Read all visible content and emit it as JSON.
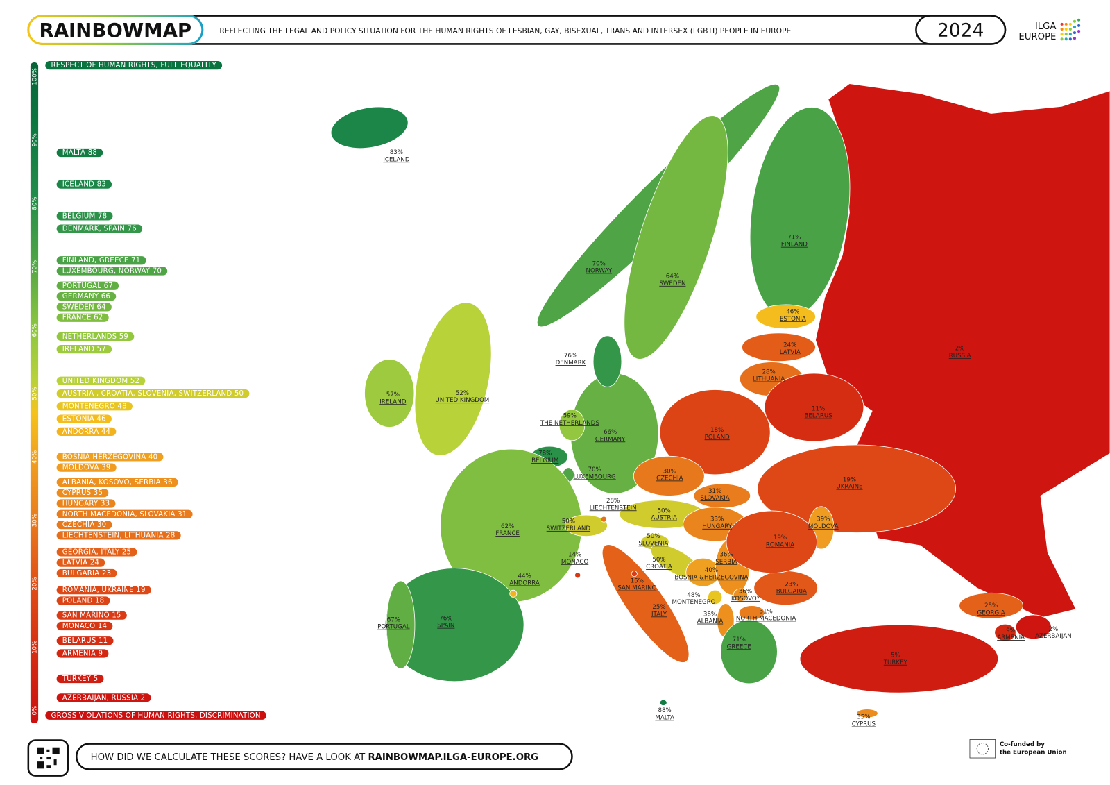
{
  "header": {
    "logo": "RAINBOWMAP",
    "subtitle": "REFLECTING THE LEGAL AND POLICY SITUATION FOR THE HUMAN RIGHTS OF LESBIAN, GAY, BISEXUAL, TRANS AND INTERSEX (LGBTI) PEOPLE IN EUROPE",
    "year": "2024",
    "org": [
      "ILGA",
      "EUROPE"
    ]
  },
  "scale": {
    "top_label": "RESPECT OF HUMAN RIGHTS, FULL EQUALITY",
    "bottom_label": "GROSS VIOLATIONS OF HUMAN RIGHTS, DISCRIMINATION",
    "ticks": [
      {
        "value": 0,
        "label": "0%"
      },
      {
        "value": 10,
        "label": "10%"
      },
      {
        "value": 20,
        "label": "20%"
      },
      {
        "value": 30,
        "label": "30%"
      },
      {
        "value": 40,
        "label": "40%"
      },
      {
        "value": 50,
        "label": "50%"
      },
      {
        "value": 60,
        "label": "60%"
      },
      {
        "value": 70,
        "label": "70%"
      },
      {
        "value": 80,
        "label": "80%"
      },
      {
        "value": 90,
        "label": "90%"
      },
      {
        "value": 100,
        "label": "100%"
      }
    ]
  },
  "ranking": [
    {
      "label": "MALTA",
      "score": 88
    },
    {
      "label": "ICELAND",
      "score": 83
    },
    {
      "label": "BELGIUM",
      "score": 78
    },
    {
      "label": "DENMARK, SPAIN",
      "score": 76
    },
    {
      "label": "FINLAND, GREECE",
      "score": 71
    },
    {
      "label": "LUXEMBOURG, NORWAY",
      "score": 70
    },
    {
      "label": "PORTUGAL",
      "score": 67
    },
    {
      "label": "GERMANY",
      "score": 66
    },
    {
      "label": "SWEDEN",
      "score": 64
    },
    {
      "label": "FRANCE",
      "score": 62
    },
    {
      "label": "NETHERLANDS",
      "score": 59
    },
    {
      "label": "IRELAND",
      "score": 57
    },
    {
      "label": "UNITED KINGDOM",
      "score": 52
    },
    {
      "label": "AUSTRIA , CROATIA, SLOVENIA, SWITZERLAND",
      "score": 50
    },
    {
      "label": "MONTENEGRO",
      "score": 48
    },
    {
      "label": "ESTONIA",
      "score": 46
    },
    {
      "label": "ANDORRA",
      "score": 44
    },
    {
      "label": "BOSNIA HERZEGOVINA",
      "score": 40
    },
    {
      "label": "MOLDOVA",
      "score": 39
    },
    {
      "label": "ALBANIA, KOSOVO, SERBIA",
      "score": 36
    },
    {
      "label": "CYPRUS",
      "score": 35
    },
    {
      "label": "HUNGARY",
      "score": 33
    },
    {
      "label": "NORTH MACEDONIA, SLOVAKIA",
      "score": 31
    },
    {
      "label": "CZECHIA",
      "score": 30
    },
    {
      "label": "LIECHTENSTEIN, LITHUANIA",
      "score": 28
    },
    {
      "label": "GEORGIA, ITALY",
      "score": 25
    },
    {
      "label": "LATVIA",
      "score": 24
    },
    {
      "label": "BULGARIA",
      "score": 23
    },
    {
      "label": "ROMANIA, UKRAINE",
      "score": 19
    },
    {
      "label": "POLAND",
      "score": 18
    },
    {
      "label": "SAN MARINO",
      "score": 15
    },
    {
      "label": "MONACO",
      "score": 14
    },
    {
      "label": "BELARUS",
      "score": 11
    },
    {
      "label": "ARMENIA",
      "score": 9
    },
    {
      "label": "TURKEY",
      "score": 5
    },
    {
      "label": "AZERBAIJAN, RUSSIA",
      "score": 2
    }
  ],
  "countries": [
    {
      "name": "RUSSIA",
      "value": 2,
      "value_label": "2%"
    },
    {
      "name": "ICELAND",
      "value": 83,
      "value_label": "83%"
    },
    {
      "name": "NORWAY",
      "value": 70,
      "value_label": "70%"
    },
    {
      "name": "SWEDEN",
      "value": 64,
      "value_label": "64%"
    },
    {
      "name": "FINLAND",
      "value": 71,
      "value_label": "71%"
    },
    {
      "name": "ESTONIA",
      "value": 46,
      "value_label": "46%"
    },
    {
      "name": "LATVIA",
      "value": 24,
      "value_label": "24%"
    },
    {
      "name": "LITHUANIA",
      "value": 28,
      "value_label": "28%"
    },
    {
      "name": "BELARUS",
      "value": 11,
      "value_label": "11%"
    },
    {
      "name": "UKRAINE",
      "value": 19,
      "value_label": "19%"
    },
    {
      "name": "MOLDOVA",
      "value": 39,
      "value_label": "39%"
    },
    {
      "name": "POLAND",
      "value": 18,
      "value_label": "18%"
    },
    {
      "name": "GERMANY",
      "value": 66,
      "value_label": "66%"
    },
    {
      "name": "DENMARK",
      "value": 76,
      "value_label": "76%"
    },
    {
      "name": "THE NETHERLANDS",
      "value": 59,
      "value_label": "59%"
    },
    {
      "name": "BELGIUM",
      "value": 78,
      "value_label": "78%"
    },
    {
      "name": "LUXEMBOURG",
      "value": 70,
      "value_label": "70%"
    },
    {
      "name": "FRANCE",
      "value": 62,
      "value_label": "62%"
    },
    {
      "name": "UNITED KINGDOM",
      "value": 52,
      "value_label": "52%"
    },
    {
      "name": "IRELAND",
      "value": 57,
      "value_label": "57%"
    },
    {
      "name": "SPAIN",
      "value": 76,
      "value_label": "76%"
    },
    {
      "name": "PORTUGAL",
      "value": 67,
      "value_label": "67%"
    },
    {
      "name": "ANDORRA",
      "value": 44,
      "value_label": "44%"
    },
    {
      "name": "MONACO",
      "value": 14,
      "value_label": "14%"
    },
    {
      "name": "SWITZERLAND",
      "value": 50,
      "value_label": "50%"
    },
    {
      "name": "LIECHTENSTEIN",
      "value": 28,
      "value_label": "28%"
    },
    {
      "name": "AUSTRIA",
      "value": 50,
      "value_label": "50%"
    },
    {
      "name": "CZECHIA",
      "value": 30,
      "value_label": "30%"
    },
    {
      "name": "SLOVAKIA",
      "value": 31,
      "value_label": "31%"
    },
    {
      "name": "HUNGARY",
      "value": 33,
      "value_label": "33%"
    },
    {
      "name": "SLOVENIA",
      "value": 50,
      "value_label": "50%"
    },
    {
      "name": "CROATIA",
      "value": 50,
      "value_label": "50%"
    },
    {
      "name": "BOSNIA &HERZEGOVINA",
      "value": 40,
      "value_label": "40%"
    },
    {
      "name": "SERBIA",
      "value": 36,
      "value_label": "36%"
    },
    {
      "name": "MONTENEGRO",
      "value": 48,
      "value_label": "48%"
    },
    {
      "name": "KOSOVO*",
      "value": 36,
      "value_label": "36%"
    },
    {
      "name": "ALBANIA",
      "value": 36,
      "value_label": "36%"
    },
    {
      "name": "NORTH MACEDONIA",
      "value": 31,
      "value_label": "31%"
    },
    {
      "name": "GREECE",
      "value": 71,
      "value_label": "71%"
    },
    {
      "name": "BULGARIA",
      "value": 23,
      "value_label": "23%"
    },
    {
      "name": "ROMANIA",
      "value": 19,
      "value_label": "19%"
    },
    {
      "name": "ITALY",
      "value": 25,
      "value_label": "25%"
    },
    {
      "name": "SAN MARINO",
      "value": 15,
      "value_label": "15%"
    },
    {
      "name": "MALTA",
      "value": 88,
      "value_label": "88%"
    },
    {
      "name": "TURKEY",
      "value": 5,
      "value_label": "5%"
    },
    {
      "name": "CYPRUS",
      "value": 35,
      "value_label": "35%"
    },
    {
      "name": "GEORGIA",
      "value": 25,
      "value_label": "25%"
    },
    {
      "name": "ARMENIA",
      "value": 9,
      "value_label": "9%"
    },
    {
      "name": "AZERBAIJAN",
      "value": 2,
      "value_label": "2%"
    }
  ],
  "footer": {
    "question": "HOW DID WE CALCULATE THESE SCORES? HAVE A LOOK AT",
    "link": "RAINBOWMAP.ILGA-EUROPE.ORG",
    "eu": [
      "Co-funded by",
      "the European Union"
    ]
  }
}
